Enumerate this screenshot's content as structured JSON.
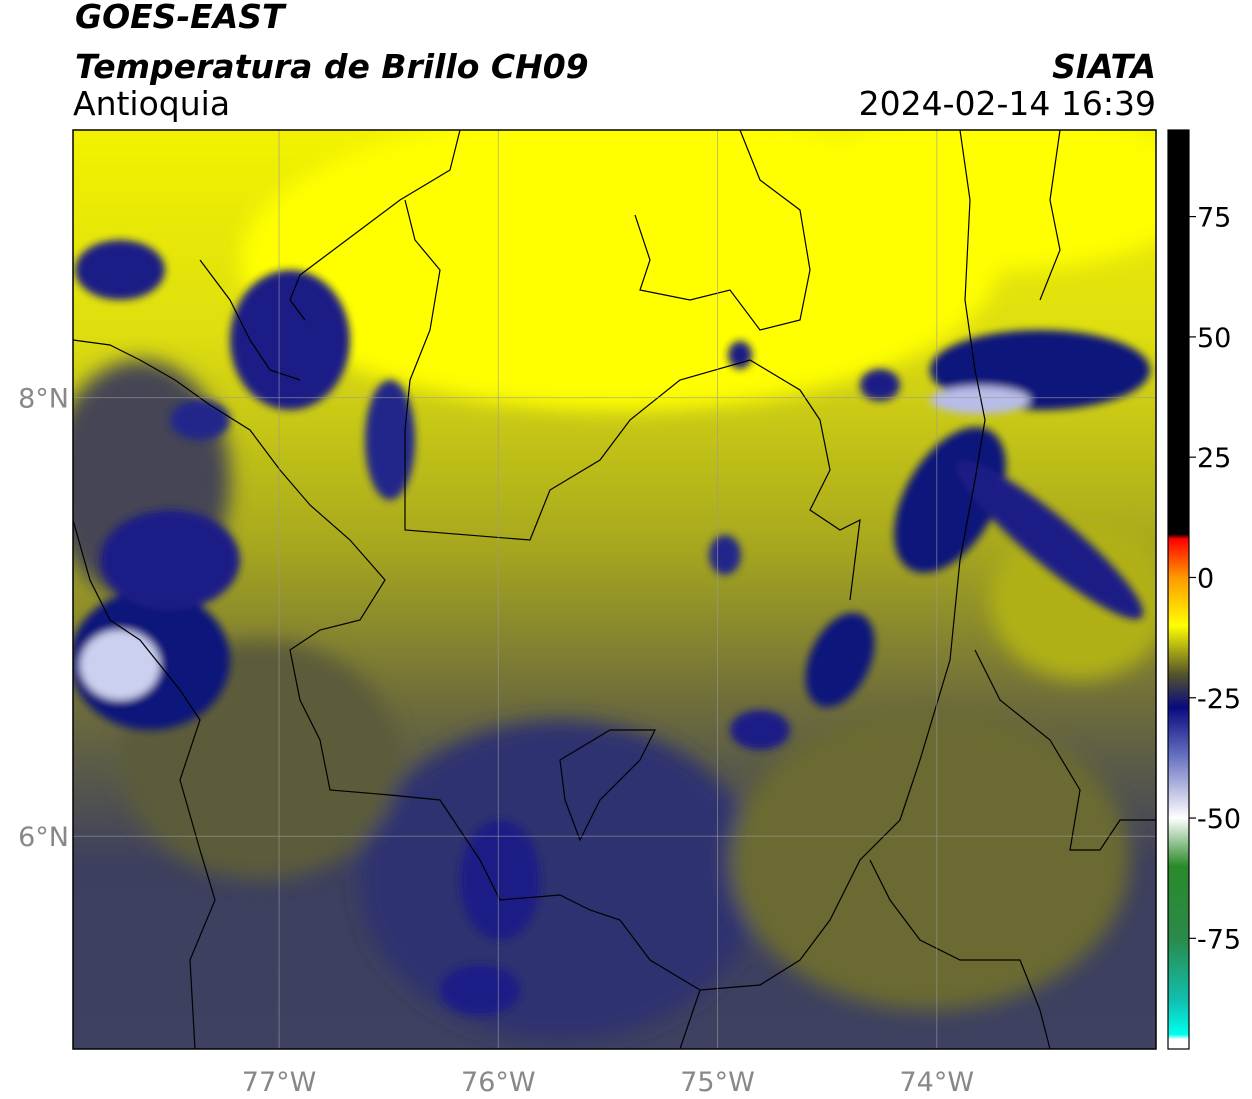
{
  "chart_data": {
    "type": "map",
    "title": "GOES-EAST",
    "subtitle": "Temperatura de Brillo CH09",
    "region": "Antioquia",
    "source": "SIATA",
    "timestamp": "2024-02-14 16:39",
    "xlim": [
      -77.94,
      -73.0
    ],
    "ylim": [
      5.03,
      9.22
    ],
    "xticks": [
      {
        "value": -77,
        "label": "77°W"
      },
      {
        "value": -76,
        "label": "76°W"
      },
      {
        "value": -75,
        "label": "75°W"
      },
      {
        "value": -74,
        "label": "74°W"
      }
    ],
    "yticks": [
      {
        "value": 6,
        "label": "6°N"
      },
      {
        "value": 8,
        "label": "8°N"
      }
    ],
    "grid": true,
    "colorbar": {
      "lim": [
        -98,
        93
      ],
      "ticks": [
        75,
        50,
        25,
        0,
        -25,
        -50,
        -75
      ],
      "stops": [
        {
          "value": 93,
          "color": "#000000"
        },
        {
          "value": 9,
          "color": "#000000"
        },
        {
          "value": 8,
          "color": "#ff0000"
        },
        {
          "value": 0,
          "color": "#ff9900"
        },
        {
          "value": -10,
          "color": "#ffff00"
        },
        {
          "value": -20,
          "color": "#55552a"
        },
        {
          "value": -27,
          "color": "#0a0a80"
        },
        {
          "value": -37,
          "color": "#6670c0"
        },
        {
          "value": -50,
          "color": "#ffffff"
        },
        {
          "value": -60,
          "color": "#2a8a2a"
        },
        {
          "value": -75,
          "color": "#2a8a4a"
        },
        {
          "value": -88,
          "color": "#10c0b0"
        },
        {
          "value": -95,
          "color": "#00ffee"
        },
        {
          "value": -96,
          "color": "#ffffff"
        },
        {
          "value": -98,
          "color": "#ffffff"
        }
      ]
    }
  }
}
